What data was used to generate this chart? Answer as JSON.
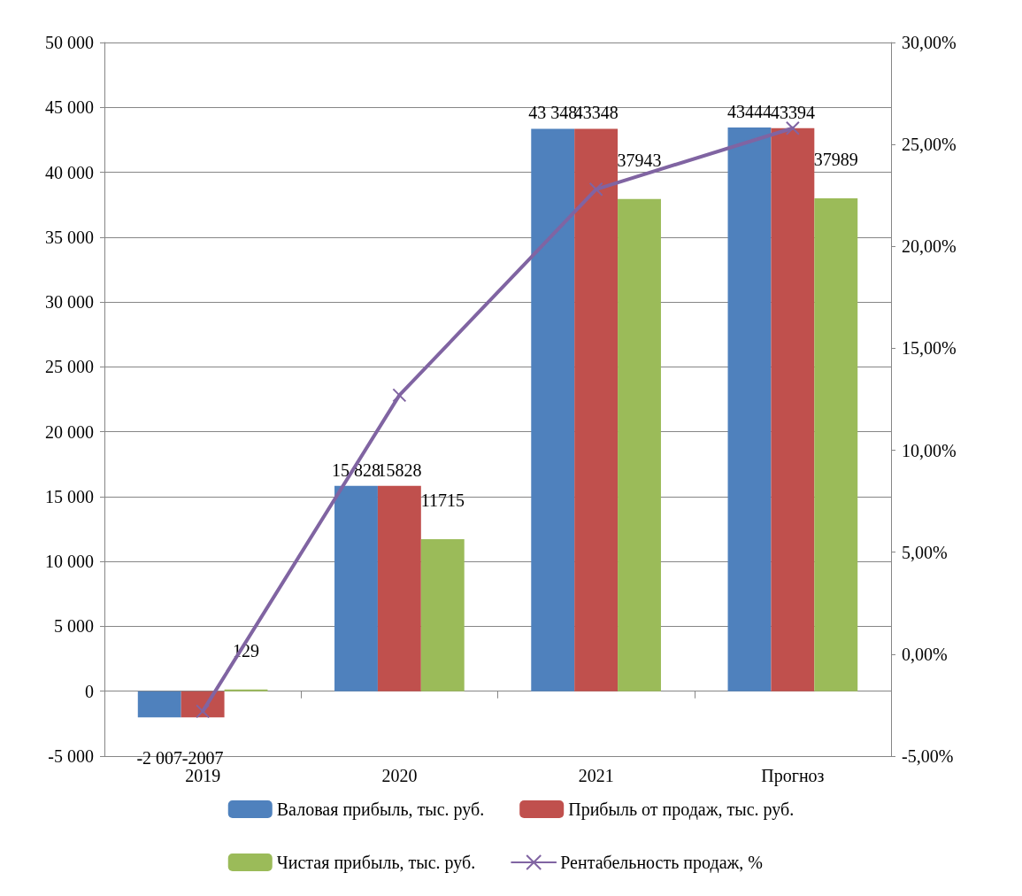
{
  "chart_data": {
    "type": "bar",
    "categories": [
      "2019",
      "2020",
      "2021",
      "Прогноз"
    ],
    "series": [
      {
        "name": "Валовая прибыль, тыс. руб.",
        "color": "#4f81bd",
        "values": [
          -2007,
          15828,
          43348,
          43444
        ],
        "value_labels": [
          "-2 007",
          "15 828",
          "43 348",
          "43444"
        ]
      },
      {
        "name": "Прибыль от продаж, тыс. руб.",
        "color": "#c0504d",
        "values": [
          -2007,
          15828,
          43348,
          43394
        ],
        "value_labels": [
          "-2007",
          "15828",
          "43348",
          "43394"
        ]
      },
      {
        "name": "Чистая прибыль, тыс. руб.",
        "color": "#9bbb59",
        "values": [
          129,
          11715,
          37943,
          37989
        ],
        "value_labels": [
          "129",
          "11715",
          "37943",
          "37989"
        ]
      },
      {
        "name": "Рентабельность продаж, %",
        "type": "line",
        "axis": "y2",
        "color": "#8064a2",
        "values": [
          -2.8,
          12.7,
          22.8,
          25.8
        ],
        "marker": "cross"
      }
    ],
    "ylim": [
      -5000,
      50000
    ],
    "yticks": [
      {
        "value": -5000,
        "label": "-5 000"
      },
      {
        "value": 0,
        "label": "0"
      },
      {
        "value": 5000,
        "label": "5 000"
      },
      {
        "value": 10000,
        "label": "10 000"
      },
      {
        "value": 15000,
        "label": "15 000"
      },
      {
        "value": 20000,
        "label": "20 000"
      },
      {
        "value": 25000,
        "label": "25 000"
      },
      {
        "value": 30000,
        "label": "30 000"
      },
      {
        "value": 35000,
        "label": "35 000"
      },
      {
        "value": 40000,
        "label": "40 000"
      },
      {
        "value": 45000,
        "label": "45 000"
      },
      {
        "value": 50000,
        "label": "50 000"
      }
    ],
    "y2lim": [
      -5,
      30
    ],
    "y2ticks": [
      {
        "value": -5,
        "label": "-5,00%"
      },
      {
        "value": 0,
        "label": "0,00%"
      },
      {
        "value": 5,
        "label": "5,00%"
      },
      {
        "value": 10,
        "label": "10,00%"
      },
      {
        "value": 15,
        "label": "15,00%"
      },
      {
        "value": 20,
        "label": "20,00%"
      },
      {
        "value": 25,
        "label": "25,00%"
      },
      {
        "value": 30,
        "label": "30,00%"
      }
    ],
    "grid": "y",
    "legend": "bottom"
  }
}
